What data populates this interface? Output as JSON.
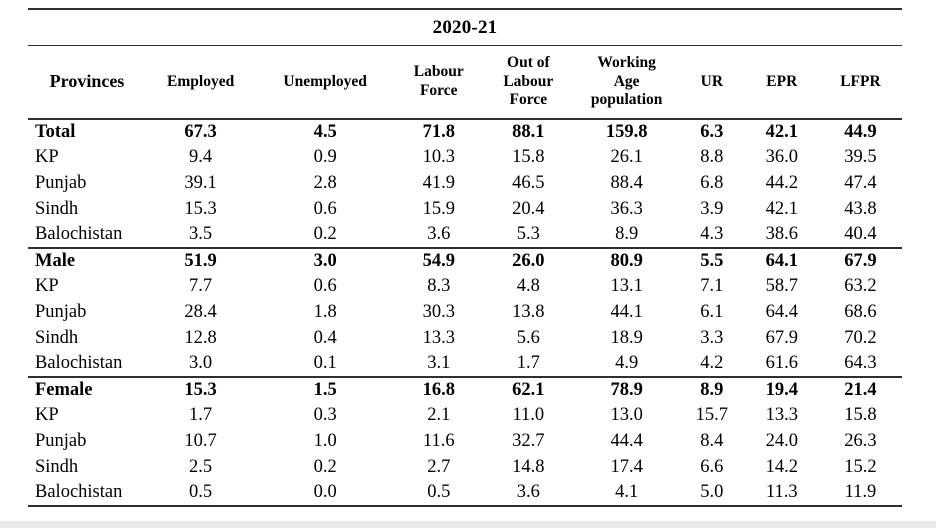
{
  "title": "2020-21",
  "colors": {
    "rule": "#2f2f2f",
    "background": "#ffffff",
    "bottom_strip": "#ebebeb"
  },
  "table": {
    "columns": [
      "Provinces",
      "Employed",
      "Unemployed",
      "Labour\nForce",
      "Out of\nLabour\nForce",
      "Working\nAge\npopulation",
      "UR",
      "EPR",
      "LFPR"
    ],
    "rows": [
      {
        "label": "Total",
        "bold": true,
        "section_start": false,
        "values": [
          "67.3",
          "4.5",
          "71.8",
          "88.1",
          "159.8",
          "6.3",
          "42.1",
          "44.9"
        ]
      },
      {
        "label": "KP",
        "bold": false,
        "section_start": false,
        "values": [
          "9.4",
          "0.9",
          "10.3",
          "15.8",
          "26.1",
          "8.8",
          "36.0",
          "39.5"
        ]
      },
      {
        "label": "Punjab",
        "bold": false,
        "section_start": false,
        "values": [
          "39.1",
          "2.8",
          "41.9",
          "46.5",
          "88.4",
          "6.8",
          "44.2",
          "47.4"
        ]
      },
      {
        "label": "Sindh",
        "bold": false,
        "section_start": false,
        "values": [
          "15.3",
          "0.6",
          "15.9",
          "20.4",
          "36.3",
          "3.9",
          "42.1",
          "43.8"
        ]
      },
      {
        "label": "Balochistan",
        "bold": false,
        "section_start": false,
        "values": [
          "3.5",
          "0.2",
          "3.6",
          "5.3",
          "8.9",
          "4.3",
          "38.6",
          "40.4"
        ]
      },
      {
        "label": "Male",
        "bold": true,
        "section_start": true,
        "values": [
          "51.9",
          "3.0",
          "54.9",
          "26.0",
          "80.9",
          "5.5",
          "64.1",
          "67.9"
        ]
      },
      {
        "label": "KP",
        "bold": false,
        "section_start": false,
        "values": [
          "7.7",
          "0.6",
          "8.3",
          "4.8",
          "13.1",
          "7.1",
          "58.7",
          "63.2"
        ]
      },
      {
        "label": "Punjab",
        "bold": false,
        "section_start": false,
        "values": [
          "28.4",
          "1.8",
          "30.3",
          "13.8",
          "44.1",
          "6.1",
          "64.4",
          "68.6"
        ]
      },
      {
        "label": "Sindh",
        "bold": false,
        "section_start": false,
        "values": [
          "12.8",
          "0.4",
          "13.3",
          "5.6",
          "18.9",
          "3.3",
          "67.9",
          "70.2"
        ]
      },
      {
        "label": "Balochistan",
        "bold": false,
        "section_start": false,
        "values": [
          "3.0",
          "0.1",
          "3.1",
          "1.7",
          "4.9",
          "4.2",
          "61.6",
          "64.3"
        ]
      },
      {
        "label": "Female",
        "bold": true,
        "section_start": true,
        "values": [
          "15.3",
          "1.5",
          "16.8",
          "62.1",
          "78.9",
          "8.9",
          "19.4",
          "21.4"
        ]
      },
      {
        "label": "KP",
        "bold": false,
        "section_start": false,
        "values": [
          "1.7",
          "0.3",
          "2.1",
          "11.0",
          "13.0",
          "15.7",
          "13.3",
          "15.8"
        ]
      },
      {
        "label": "Punjab",
        "bold": false,
        "section_start": false,
        "values": [
          "10.7",
          "1.0",
          "11.6",
          "32.7",
          "44.4",
          "8.4",
          "24.0",
          "26.3"
        ]
      },
      {
        "label": "Sindh",
        "bold": false,
        "section_start": false,
        "values": [
          "2.5",
          "0.2",
          "2.7",
          "14.8",
          "17.4",
          "6.6",
          "14.2",
          "15.2"
        ]
      },
      {
        "label": "Balochistan",
        "bold": false,
        "section_start": false,
        "values": [
          "0.5",
          "0.0",
          "0.5",
          "3.6",
          "4.1",
          "5.0",
          "11.3",
          "11.9"
        ]
      }
    ]
  }
}
